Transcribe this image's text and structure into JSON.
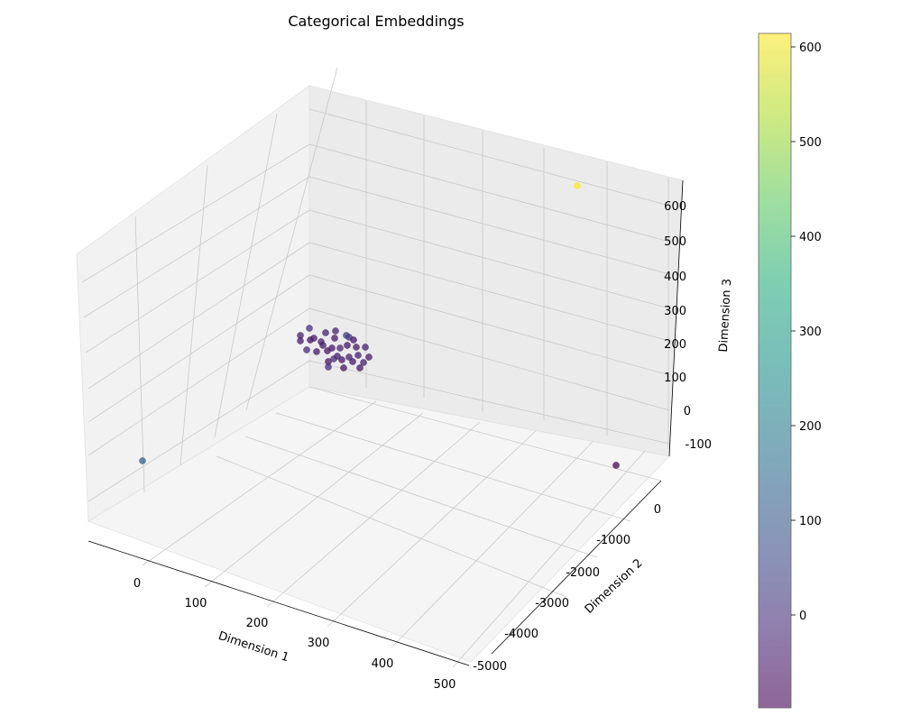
{
  "chart_data": {
    "type": "scatter",
    "projection": "3d",
    "title": "Categorical Embeddings",
    "xlabel": "Dimension 1",
    "ylabel": "Dimension 2",
    "zlabel": "Dimension 3",
    "x_ticks": [
      "0",
      "100",
      "200",
      "300",
      "400",
      "500"
    ],
    "y_ticks": [
      "-5000",
      "-4000",
      "-3000",
      "-2000",
      "-1000",
      "0"
    ],
    "z_ticks": [
      "-100",
      "0",
      "100",
      "200",
      "300",
      "400",
      "500",
      "600"
    ],
    "colorbar_ticks": [
      "0",
      "100",
      "200",
      "300",
      "400",
      "500",
      "600"
    ],
    "colormap": "viridis",
    "alpha": 0.6,
    "grid": true,
    "colorbar_placement": "right",
    "points": [
      {
        "x": 640,
        "y": 206,
        "c": 612
      },
      {
        "x": 158,
        "y": 511,
        "c": 120
      },
      {
        "x": 683,
        "y": 516,
        "c": -100
      },
      {
        "x": 343,
        "y": 364,
        "c": 0
      },
      {
        "x": 333,
        "y": 372,
        "c": -40
      },
      {
        "x": 348,
        "y": 375,
        "c": -50
      },
      {
        "x": 361,
        "y": 369,
        "c": -40
      },
      {
        "x": 372,
        "y": 367,
        "c": -30
      },
      {
        "x": 384,
        "y": 372,
        "c": 30
      },
      {
        "x": 387,
        "y": 374,
        "c": 10
      },
      {
        "x": 333,
        "y": 378,
        "c": -50
      },
      {
        "x": 344,
        "y": 377,
        "c": -60
      },
      {
        "x": 358,
        "y": 383,
        "c": -40
      },
      {
        "x": 371,
        "y": 375,
        "c": -50
      },
      {
        "x": 368,
        "y": 386,
        "c": -60
      },
      {
        "x": 377,
        "y": 386,
        "c": -30
      },
      {
        "x": 385,
        "y": 383,
        "c": -60
      },
      {
        "x": 395,
        "y": 385,
        "c": -50
      },
      {
        "x": 405,
        "y": 385,
        "c": -40
      },
      {
        "x": 340,
        "y": 388,
        "c": -20
      },
      {
        "x": 351,
        "y": 390,
        "c": -50
      },
      {
        "x": 363,
        "y": 389,
        "c": -60
      },
      {
        "x": 374,
        "y": 395,
        "c": -40
      },
      {
        "x": 387,
        "y": 396,
        "c": -50
      },
      {
        "x": 397,
        "y": 394,
        "c": -40
      },
      {
        "x": 409,
        "y": 396,
        "c": -50
      },
      {
        "x": 364,
        "y": 401,
        "c": -60
      },
      {
        "x": 379,
        "y": 399,
        "c": -60
      },
      {
        "x": 391,
        "y": 401,
        "c": -50
      },
      {
        "x": 403,
        "y": 402,
        "c": -40
      },
      {
        "x": 370,
        "y": 398,
        "c": -10
      },
      {
        "x": 364,
        "y": 407,
        "c": -20
      },
      {
        "x": 381,
        "y": 408,
        "c": -60
      },
      {
        "x": 399,
        "y": 408,
        "c": -60
      },
      {
        "x": 356,
        "y": 379,
        "c": -40
      },
      {
        "x": 392,
        "y": 377,
        "c": -60
      }
    ]
  }
}
